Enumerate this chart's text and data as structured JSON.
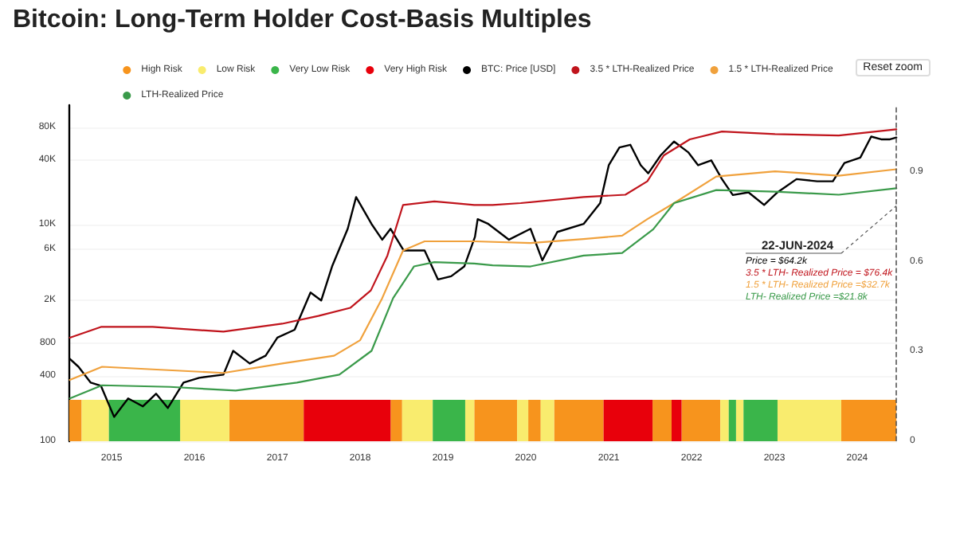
{
  "chart_data": {
    "type": "line",
    "title": "Bitcoin: Long-Term Holder Cost-Basis Multiples",
    "log": "y",
    "grid": "y",
    "legend": "top",
    "marker": "none",
    "line_style": "solid",
    "xlim": [
      "2014-06-25",
      "2024-06-25"
    ],
    "xticks": [
      "2015",
      "2016",
      "2017",
      "2018",
      "2019",
      "2020",
      "2021",
      "2022",
      "2023",
      "2024"
    ],
    "ylim": [
      100,
      128000
    ],
    "yticks": [
      100,
      {
        "value": 400,
        "label": "400"
      },
      {
        "value": 800,
        "label": "800"
      },
      {
        "value": 2000,
        "label": "2K"
      },
      {
        "value": 6000,
        "label": "6K"
      },
      {
        "value": 10000,
        "label": "10K"
      },
      {
        "value": 40000,
        "label": "40K"
      },
      {
        "value": 80000,
        "label": "80K"
      }
    ],
    "y2lim": [
      0,
      1.125
    ],
    "y2ticks": [
      0,
      0.3,
      0.6,
      0.9
    ],
    "series": [
      {
        "name": "BTC: Price [USD]",
        "color": "#000000",
        "x": [
          "2014-07-01",
          "2014-08-08",
          "2014-10-01",
          "2014-11-15",
          "2015-01-12",
          "2015-03-15",
          "2015-05-19",
          "2015-07-16",
          "2015-09-06",
          "2015-11-14",
          "2016-01-22",
          "2016-05-08",
          "2016-06-20",
          "2016-09-01",
          "2016-11-10",
          "2017-01-01",
          "2017-03-18",
          "2017-05-27",
          "2017-07-13",
          "2017-08-30",
          "2017-11-07",
          "2017-12-14",
          "2018-02-20",
          "2018-04-08",
          "2018-05-15",
          "2018-07-12",
          "2018-10-12",
          "2018-12-10",
          "2019-02-06",
          "2019-04-05",
          "2019-05-22",
          "2019-06-03",
          "2019-07-20",
          "2019-10-19",
          "2020-01-22",
          "2020-03-14",
          "2020-05-19",
          "2020-09-12",
          "2020-11-24",
          "2021-01-01",
          "2021-02-17",
          "2021-04-06",
          "2021-05-22",
          "2021-06-24",
          "2021-08-18",
          "2021-10-16",
          "2021-12-17",
          "2022-01-30",
          "2022-03-29",
          "2022-05-15",
          "2022-07-02",
          "2022-09-09",
          "2022-11-17",
          "2023-01-15",
          "2023-02-17",
          "2023-04-09",
          "2023-07-09",
          "2023-09-16",
          "2023-11-06",
          "2024-01-15",
          "2024-03-03",
          "2024-04-16",
          "2024-05-25",
          "2024-06-22"
        ],
        "values": [
          578,
          488,
          348,
          325,
          168,
          249,
          210,
          275,
          203,
          348,
          386,
          413,
          685,
          523,
          618,
          907,
          1073,
          2372,
          2000,
          4130,
          9200,
          18100,
          10200,
          7300,
          9200,
          5800,
          5800,
          3130,
          3350,
          4130,
          7760,
          11300,
          10200,
          7300,
          9200,
          4700,
          8600,
          10200,
          15900,
          35600,
          52000,
          55000,
          35600,
          30000,
          44000,
          59000,
          47000,
          35600,
          39500,
          26500,
          18900,
          20000,
          15300,
          20000,
          22300,
          26500,
          25300,
          25300,
          37300,
          41900,
          65500,
          61800,
          61800,
          64200
        ]
      },
      {
        "name": "3.5 * LTH-Realized Price",
        "color": "#c0141c",
        "x": [
          "2014-07-01",
          "2014-11-15",
          "2015-07-01",
          "2016-05-08",
          "2017-01-22",
          "2017-07-01",
          "2017-11-18",
          "2018-02-17",
          "2018-05-01",
          "2018-07-09",
          "2018-11-24",
          "2019-05-19",
          "2019-08-08",
          "2019-12-10",
          "2020-09-12",
          "2021-03-15",
          "2021-06-20",
          "2021-09-01",
          "2021-12-24",
          "2022-05-15",
          "2023-01-04",
          "2023-10-12",
          "2024-06-22"
        ],
        "values": [
          907,
          1140,
          1140,
          1030,
          1220,
          1440,
          1710,
          2480,
          5200,
          15300,
          16500,
          15300,
          15300,
          15900,
          18100,
          19000,
          25300,
          44000,
          61800,
          73000,
          69000,
          67000,
          76400
        ]
      },
      {
        "name": "1.5 * LTH-Realized Price",
        "color": "#f0a13c",
        "x": [
          "2014-07-01",
          "2014-11-20",
          "2015-07-01",
          "2016-05-08",
          "2017-01-22",
          "2017-09-08",
          "2018-01-01",
          "2018-04-08",
          "2018-07-09",
          "2018-10-12",
          "2019-05-19",
          "2020-01-22",
          "2020-09-12",
          "2021-03-01",
          "2021-06-20",
          "2021-10-16",
          "2022-04-20",
          "2023-01-04",
          "2023-10-12",
          "2024-06-22"
        ],
        "values": [
          369,
          488,
          462,
          428,
          523,
          618,
          860,
          2100,
          5800,
          7050,
          7050,
          6800,
          7400,
          7960,
          11300,
          15900,
          28000,
          31300,
          28500,
          32700
        ]
      },
      {
        "name": "LTH-Realized Price",
        "color": "#3a9a4a",
        "x": [
          "2014-07-01",
          "2014-11-20",
          "2015-09-15",
          "2016-07-01",
          "2017-03-28",
          "2017-10-01",
          "2018-02-20",
          "2018-05-26",
          "2018-08-26",
          "2018-11-24",
          "2019-05-19",
          "2019-08-08",
          "2020-01-22",
          "2020-09-12",
          "2021-03-01",
          "2021-07-16",
          "2021-10-16",
          "2022-04-20",
          "2023-01-04",
          "2023-10-12",
          "2024-06-22"
        ],
        "values": [
          249,
          329,
          318,
          294,
          348,
          413,
          685,
          2100,
          4130,
          4530,
          4400,
          4230,
          4130,
          5200,
          5500,
          9100,
          15900,
          21000,
          20300,
          19000,
          21800
        ]
      }
    ],
    "bands": [
      {
        "axis": "x",
        "from": "2014-06-28",
        "to": "2014-08-22",
        "label": "High Risk",
        "color": "#f7941d"
      },
      {
        "axis": "x",
        "from": "2014-08-22",
        "to": "2014-12-20",
        "label": "Low Risk",
        "color": "#f9ec6e"
      },
      {
        "axis": "x",
        "from": "2014-12-20",
        "to": "2015-10-30",
        "label": "Very Low Risk",
        "color": "#3ab54a"
      },
      {
        "axis": "x",
        "from": "2015-10-30",
        "to": "2016-06-03",
        "color": "#f9ec6e"
      },
      {
        "axis": "x",
        "from": "2016-06-03",
        "to": "2017-04-27",
        "color": "#f7941d"
      },
      {
        "axis": "x",
        "from": "2017-04-27",
        "to": "2018-05-15",
        "label": "Very High Risk",
        "color": "#e8000b"
      },
      {
        "axis": "x",
        "from": "2018-05-15",
        "to": "2018-07-05",
        "color": "#f7941d"
      },
      {
        "axis": "x",
        "from": "2018-07-05",
        "to": "2018-11-17",
        "color": "#f9ec6e"
      },
      {
        "axis": "x",
        "from": "2018-11-17",
        "to": "2019-04-09",
        "color": "#3ab54a"
      },
      {
        "axis": "x",
        "from": "2019-04-09",
        "to": "2019-05-19",
        "color": "#f9ec6e"
      },
      {
        "axis": "x",
        "from": "2019-05-19",
        "to": "2019-11-24",
        "color": "#f7941d"
      },
      {
        "axis": "x",
        "from": "2019-11-24",
        "to": "2020-01-12",
        "color": "#f9ec6e"
      },
      {
        "axis": "x",
        "from": "2020-01-12",
        "to": "2020-03-07",
        "color": "#f7941d"
      },
      {
        "axis": "x",
        "from": "2020-03-07",
        "to": "2020-05-05",
        "color": "#f9ec6e"
      },
      {
        "axis": "x",
        "from": "2020-05-05",
        "to": "2020-12-09",
        "color": "#f7941d"
      },
      {
        "axis": "x",
        "from": "2020-12-09",
        "to": "2021-07-13",
        "color": "#e8000b"
      },
      {
        "axis": "x",
        "from": "2021-07-13",
        "to": "2021-10-05",
        "color": "#f7941d"
      },
      {
        "axis": "x",
        "from": "2021-10-05",
        "to": "2021-11-18",
        "color": "#e8000b"
      },
      {
        "axis": "x",
        "from": "2021-11-18",
        "to": "2022-05-08",
        "color": "#f7941d"
      },
      {
        "axis": "x",
        "from": "2022-05-08",
        "to": "2022-06-14",
        "color": "#f9ec6e"
      },
      {
        "axis": "x",
        "from": "2022-06-14",
        "to": "2022-07-16",
        "color": "#3ab54a"
      },
      {
        "axis": "x",
        "from": "2022-07-16",
        "to": "2022-08-18",
        "color": "#f9ec6e"
      },
      {
        "axis": "x",
        "from": "2022-08-18",
        "to": "2023-01-15",
        "color": "#3ab54a"
      },
      {
        "axis": "x",
        "from": "2023-01-15",
        "to": "2023-10-23",
        "color": "#f9ec6e"
      },
      {
        "axis": "x",
        "from": "2023-10-23",
        "to": "2024-06-22",
        "color": "#f7941d"
      }
    ],
    "ref_lines": [
      {
        "axis": "x",
        "value": "2024-06-22",
        "color": "#555555",
        "line_style": "dashed"
      }
    ],
    "annotations": [
      {
        "text": "22-JUN-2024",
        "x": "2024-06-22",
        "y": 15000
      },
      "Price = $64.2k",
      "3.5 * LTH- Realized Price = $76.4k",
      "1.5 * LTH- Realized Price =$32.7k",
      "LTH- Realized Price =$21.8k",
      "Reset zoom"
    ]
  }
}
